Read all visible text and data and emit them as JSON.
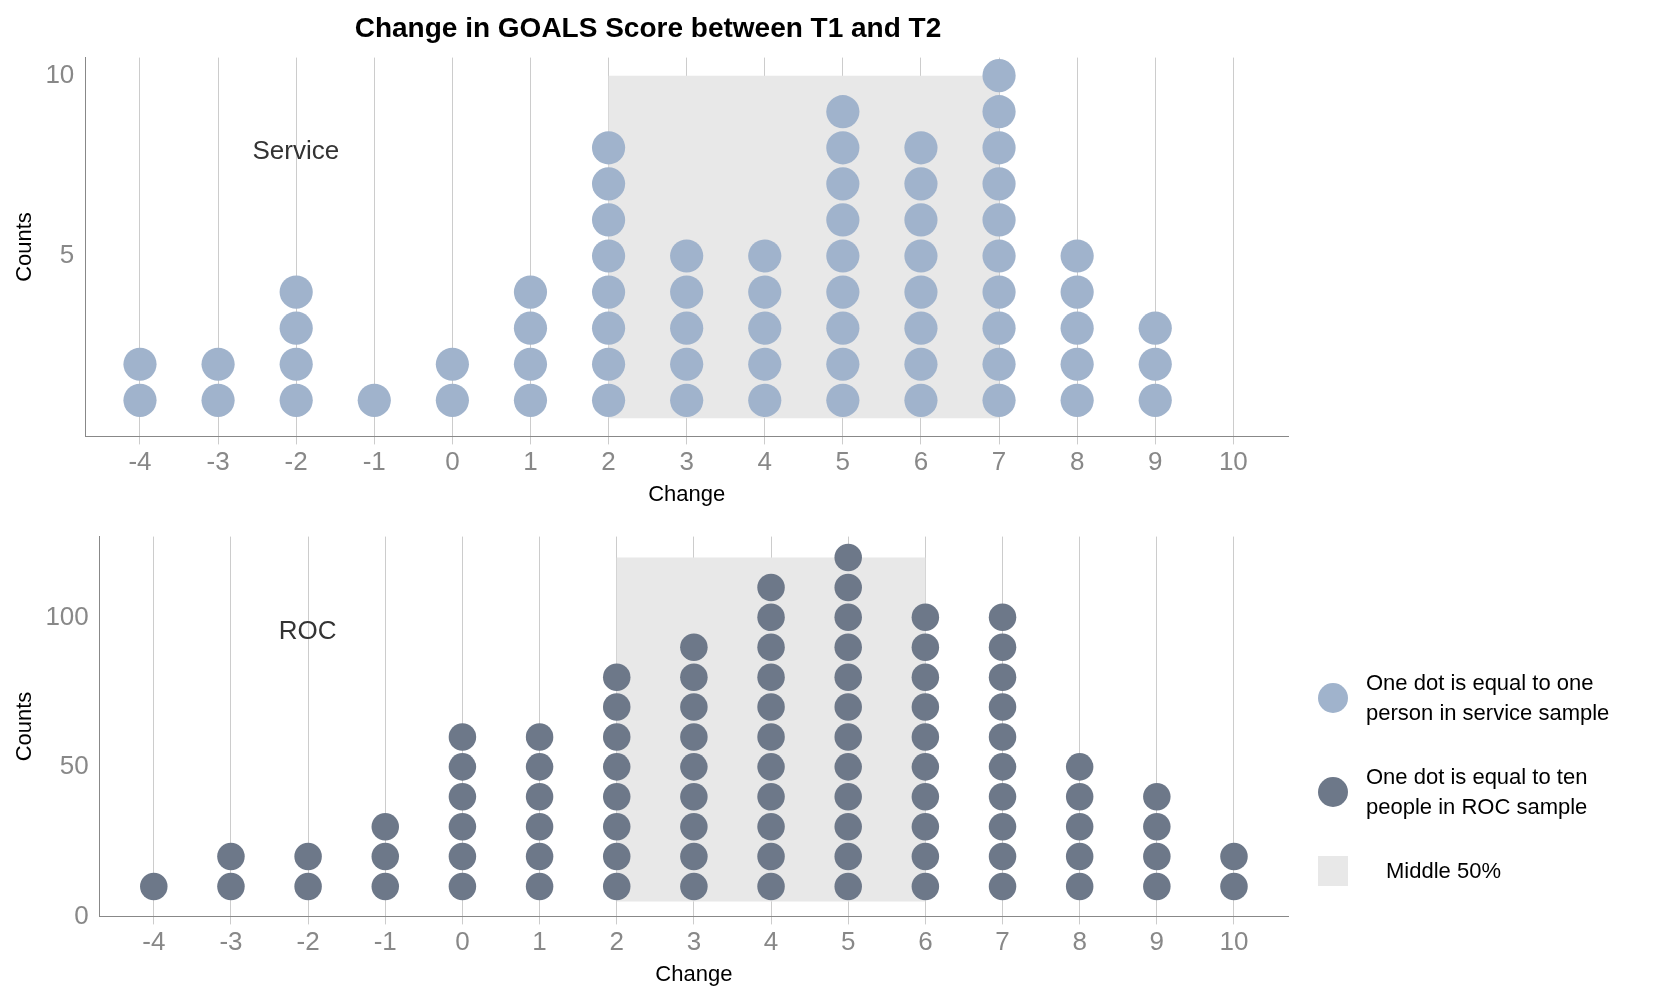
{
  "chart_data": [
    {
      "type": "scatter",
      "title": "Change in GOALS Score between T1 and T2",
      "xlabel": "Change",
      "ylabel": "Counts",
      "xlim": [
        -4.7,
        10.7
      ],
      "xticks": [
        -4,
        -3,
        -2,
        -1,
        0,
        1,
        2,
        3,
        4,
        5,
        6,
        7,
        8,
        9,
        10
      ],
      "ylim": [
        0,
        10.5
      ],
      "yticks": [
        5,
        10
      ],
      "grid": "x",
      "legend": "right",
      "marker": "circle",
      "series": [
        {
          "name": "One dot is equal to one person in service sample",
          "color": "#a0b3cc",
          "x": [
            -4,
            -4,
            -3,
            -3,
            -2,
            -2,
            -2,
            -2,
            -1,
            0,
            0,
            1,
            1,
            1,
            1,
            2,
            2,
            2,
            2,
            2,
            2,
            2,
            2,
            3,
            3,
            3,
            3,
            3,
            4,
            4,
            4,
            4,
            4,
            5,
            5,
            5,
            5,
            5,
            5,
            5,
            5,
            5,
            6,
            6,
            6,
            6,
            6,
            6,
            6,
            6,
            7,
            7,
            7,
            7,
            7,
            7,
            7,
            7,
            7,
            7,
            8,
            8,
            8,
            8,
            8,
            9,
            9,
            9
          ],
          "values": [
            1,
            2,
            1,
            2,
            1,
            2,
            3,
            4,
            1,
            1,
            2,
            1,
            2,
            3,
            4,
            1,
            2,
            3,
            4,
            5,
            6,
            7,
            8,
            1,
            2,
            3,
            4,
            5,
            1,
            2,
            3,
            4,
            5,
            1,
            2,
            3,
            4,
            5,
            6,
            7,
            8,
            9,
            1,
            2,
            3,
            4,
            5,
            6,
            7,
            8,
            1,
            2,
            3,
            4,
            5,
            6,
            7,
            8,
            9,
            10,
            1,
            2,
            3,
            4,
            5,
            1,
            2,
            3
          ]
        }
      ],
      "bands": [
        {
          "axis": "x",
          "from": 2,
          "to": 7,
          "color": "#e8e8e8"
        }
      ],
      "annotations": [
        "Service"
      ]
    },
    {
      "type": "scatter",
      "xlabel": "Change",
      "ylabel": "Counts",
      "xlim": [
        -4.7,
        10.7
      ],
      "xticks": [
        -4,
        -3,
        -2,
        -1,
        0,
        1,
        2,
        3,
        4,
        5,
        6,
        7,
        8,
        9,
        10
      ],
      "ylim": [
        0,
        127
      ],
      "yticks": [
        0,
        50,
        100
      ],
      "grid": "x",
      "legend": "right",
      "marker": "circle",
      "series": [
        {
          "name": "One dot is equal to ten people in ROC sample",
          "color": "#6d7889",
          "x": [
            -4,
            -3,
            -3,
            -2,
            -2,
            -1,
            -1,
            -1,
            0,
            0,
            0,
            0,
            0,
            0,
            1,
            1,
            1,
            1,
            1,
            1,
            2,
            2,
            2,
            2,
            2,
            2,
            2,
            2,
            3,
            3,
            3,
            3,
            3,
            3,
            3,
            3,
            3,
            4,
            4,
            4,
            4,
            4,
            4,
            4,
            4,
            4,
            4,
            4,
            5,
            5,
            5,
            5,
            5,
            5,
            5,
            5,
            5,
            5,
            5,
            5,
            6,
            6,
            6,
            6,
            6,
            6,
            6,
            6,
            6,
            6,
            7,
            7,
            7,
            7,
            7,
            7,
            7,
            7,
            7,
            7,
            8,
            8,
            8,
            8,
            8,
            9,
            9,
            9,
            9,
            10,
            10
          ],
          "values": [
            10,
            10,
            20,
            10,
            20,
            10,
            20,
            30,
            10,
            20,
            30,
            40,
            50,
            60,
            10,
            20,
            30,
            40,
            50,
            60,
            10,
            20,
            30,
            40,
            50,
            60,
            70,
            80,
            10,
            20,
            30,
            40,
            50,
            60,
            70,
            80,
            90,
            10,
            20,
            30,
            40,
            50,
            60,
            70,
            80,
            90,
            100,
            110,
            10,
            20,
            30,
            40,
            50,
            60,
            70,
            80,
            90,
            100,
            110,
            120,
            10,
            20,
            30,
            40,
            50,
            60,
            70,
            80,
            90,
            100,
            10,
            20,
            30,
            40,
            50,
            60,
            70,
            80,
            90,
            100,
            10,
            20,
            30,
            40,
            50,
            10,
            20,
            30,
            40,
            10,
            20
          ]
        }
      ],
      "bands": [
        {
          "axis": "x",
          "from": 2,
          "to": 6,
          "color": "#e8e8e8"
        }
      ],
      "annotations": [
        "ROC",
        "Middle 50%"
      ]
    }
  ]
}
